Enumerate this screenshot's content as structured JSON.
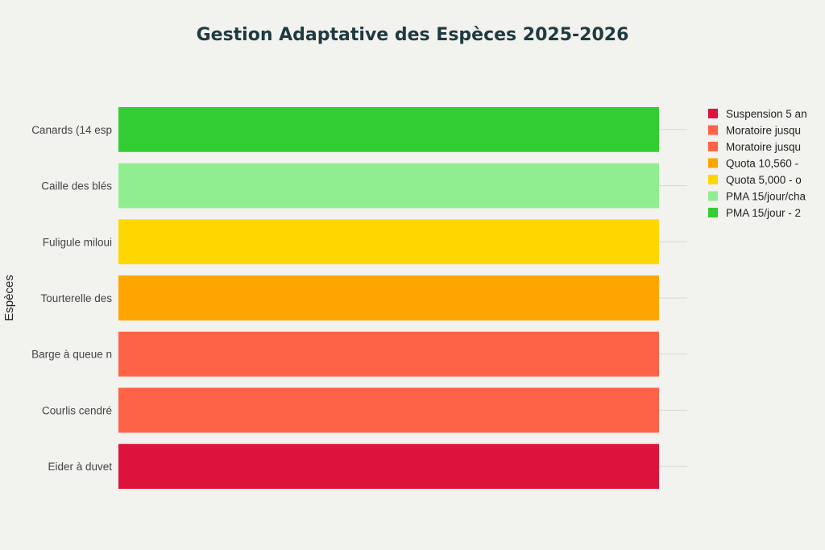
{
  "chart_data": {
    "type": "bar",
    "orientation": "horizontal",
    "title": "Gestion Adaptative des Espèces 2025-2026",
    "ylabel": "Espèces",
    "xlabel": "",
    "grid": true,
    "legend_position": "right",
    "categories": [
      "Canards (14 esp",
      "Caille des blés",
      "Fuligule miloui",
      "Tourterelle des",
      "Barge à queue n",
      "Courlis cendré",
      "Eider à duvet"
    ],
    "values": [
      1,
      1,
      1,
      1,
      1,
      1,
      1
    ],
    "colors": [
      "#32cd32",
      "#90ee90",
      "#ffd700",
      "#ffa500",
      "#ff6347",
      "#ff6347",
      "#dc143c"
    ],
    "legend": [
      {
        "label": "Suspension 5 an",
        "color": "#dc143c"
      },
      {
        "label": "Moratoire jusqu",
        "color": "#ff6347"
      },
      {
        "label": "Moratoire jusqu",
        "color": "#ff6347"
      },
      {
        "label": "Quota 10,560 -",
        "color": "#ffa500"
      },
      {
        "label": "Quota 5,000 - o",
        "color": "#ffd700"
      },
      {
        "label": "PMA 15/jour/cha",
        "color": "#90ee90"
      },
      {
        "label": "PMA 15/jour - 2",
        "color": "#32cd32"
      }
    ]
  }
}
